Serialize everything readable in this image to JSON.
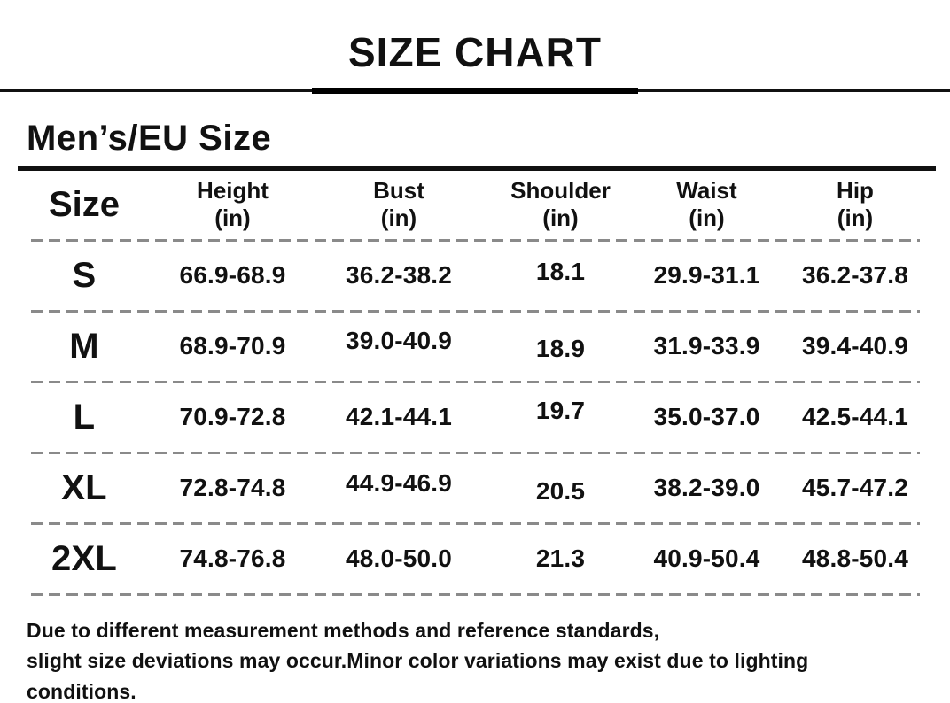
{
  "page": {
    "title": "SIZE CHART",
    "heading": "Men’s/EU Size"
  },
  "table": {
    "headers": [
      {
        "label": "Size",
        "unit": ""
      },
      {
        "label": "Height",
        "unit": "(in)"
      },
      {
        "label": "Bust",
        "unit": "(in)"
      },
      {
        "label": "Shoulder",
        "unit": "(in)"
      },
      {
        "label": "Waist",
        "unit": "(in)"
      },
      {
        "label": "Hip",
        "unit": "(in)"
      }
    ],
    "rows": [
      {
        "size": "S",
        "height": "66.9-68.9",
        "bust": "36.2-38.2",
        "shoulder": "18.1",
        "waist": "29.9-31.1",
        "hip": "36.2-37.8"
      },
      {
        "size": "M",
        "height": "68.9-70.9",
        "bust": "39.0-40.9",
        "shoulder": "18.9",
        "waist": "31.9-33.9",
        "hip": "39.4-40.9"
      },
      {
        "size": "L",
        "height": "70.9-72.8",
        "bust": "42.1-44.1",
        "shoulder": "19.7",
        "waist": "35.0-37.0",
        "hip": "42.5-44.1"
      },
      {
        "size": "XL",
        "height": "72.8-74.8",
        "bust": "44.9-46.9",
        "shoulder": "20.5",
        "waist": "38.2-39.0",
        "hip": "45.7-47.2"
      },
      {
        "size": "2XL",
        "height": "74.8-76.8",
        "bust": "48.0-50.0",
        "shoulder": "21.3",
        "waist": "40.9-50.4",
        "hip": "48.8-50.4"
      }
    ]
  },
  "footer": {
    "line1": "Due to different measurement methods and reference standards,",
    "line2": "slight size deviations may occur.Minor color variations may exist due to lighting conditions."
  },
  "colors": {
    "background": "#ffffff",
    "text": "#111111",
    "rule": "#111111",
    "dashed_line": "#8a8a8a"
  }
}
